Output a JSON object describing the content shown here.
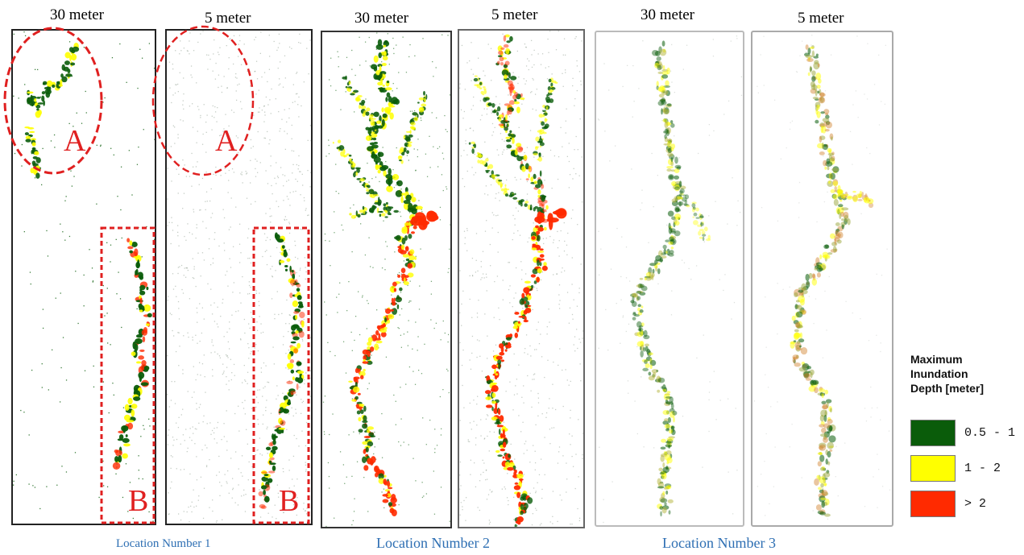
{
  "resolution_labels": [
    "30 meter",
    "5 meter",
    "30 meter",
    "5 meter",
    "30 meter",
    "5 meter"
  ],
  "locations": [
    "Location Number 1",
    "Location Number 2",
    "Location Number 3"
  ],
  "region_labels": [
    "A",
    "A",
    "B",
    "B"
  ],
  "legend": {
    "title_lines": [
      "Maximum",
      "Inundation",
      "Depth [meter]"
    ],
    "items": [
      {
        "label": "0.5 - 1",
        "color": "#0a5c0a"
      },
      {
        "label": "1 - 2",
        "color": "#ffff00"
      },
      {
        "label": "> 2",
        "color": "#ff2a00"
      }
    ]
  },
  "colors": {
    "deep_green": "#0a5c0a",
    "yellow": "#ffff00",
    "red": "#ff2a00",
    "annotation_red": "#e02020",
    "location_text": "#2e6fb3"
  }
}
